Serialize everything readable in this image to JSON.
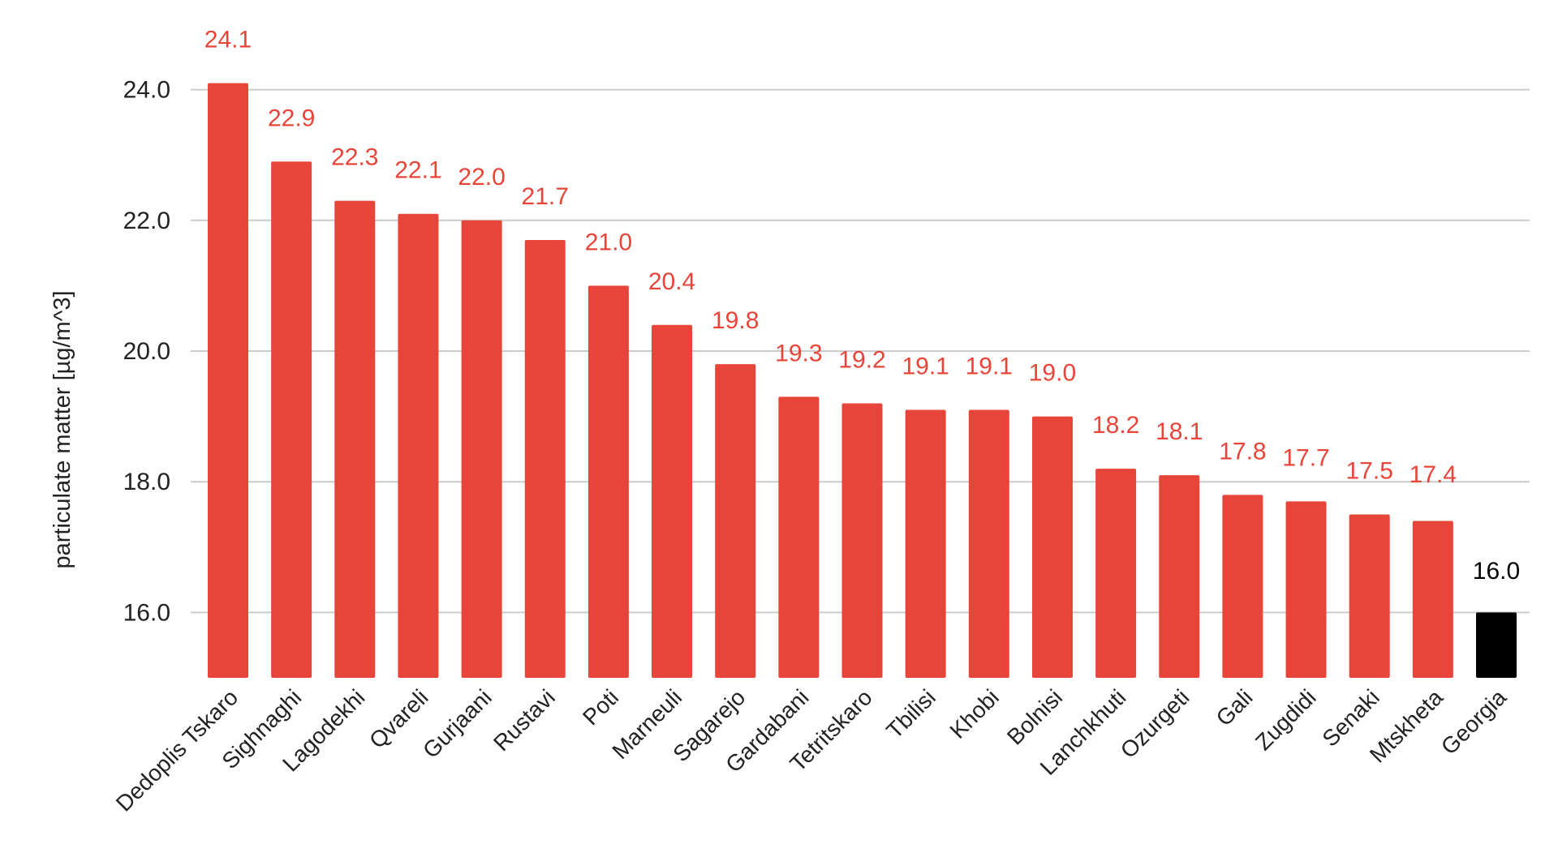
{
  "chart_data": {
    "type": "bar",
    "title": "",
    "xlabel": "",
    "ylabel": "particulate matter [µg/m^3]",
    "ylim": [
      15,
      25
    ],
    "yticks": [
      16,
      18,
      20,
      22,
      24
    ],
    "ytick_labels": [
      "16.0",
      "18.0",
      "20.0",
      "22.0",
      "24.0"
    ],
    "grid": "horizontal",
    "legend": "none",
    "categories": [
      "Dedoplis Tskaro",
      "Sighnaghi",
      "Lagodekhi",
      "Qvareli",
      "Gurjaani",
      "Rustavi",
      "Poti",
      "Marneuli",
      "Sagarejo",
      "Gardabani",
      "Tetritskaro",
      "Tbilisi",
      "Khobi",
      "Bolnisi",
      "Lanchkhuti",
      "Ozurgeti",
      "Gali",
      "Zugdidi",
      "Senaki",
      "Mtskheta",
      "Georgia"
    ],
    "values": [
      24.1,
      22.9,
      22.3,
      22.1,
      22.0,
      21.7,
      21.0,
      20.4,
      19.8,
      19.3,
      19.2,
      19.1,
      19.1,
      19.0,
      18.2,
      18.1,
      17.8,
      17.7,
      17.5,
      17.4,
      16.0
    ],
    "value_labels": [
      "24.1",
      "22.9",
      "22.3",
      "22.1",
      "22.0",
      "21.7",
      "21.0",
      "20.4",
      "19.8",
      "19.3",
      "19.2",
      "19.1",
      "19.1",
      "19.0",
      "18.2",
      "18.1",
      "17.8",
      "17.7",
      "17.5",
      "17.4",
      "16.0"
    ],
    "colors": {
      "bar": "#e8453a",
      "highlight_bar": "#000000",
      "bar_label": "#e8453a",
      "highlight_label": "#000000"
    },
    "highlight_category": "Georgia"
  }
}
